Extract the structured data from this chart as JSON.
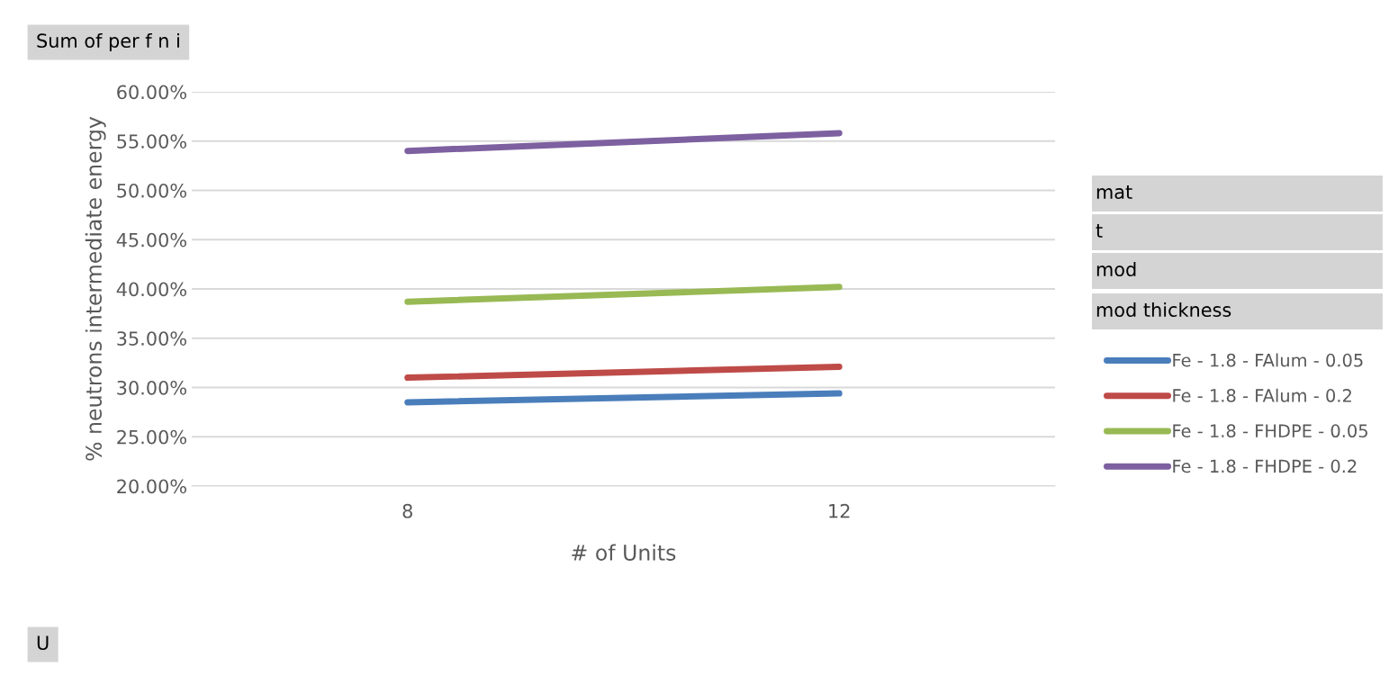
{
  "chart_data": {
    "type": "line",
    "categories": [
      "8",
      "12"
    ],
    "xlabel": "# of Units",
    "ylabel": "% neutrons intermediate energy",
    "ylim": [
      20,
      60
    ],
    "yticks": [
      {
        "value": 20,
        "label": "20.00%"
      },
      {
        "value": 25,
        "label": "25.00%"
      },
      {
        "value": 30,
        "label": "30.00%"
      },
      {
        "value": 35,
        "label": "35.00%"
      },
      {
        "value": 40,
        "label": "40.00%"
      },
      {
        "value": 45,
        "label": "45.00%"
      },
      {
        "value": 50,
        "label": "50.00%"
      },
      {
        "value": 55,
        "label": "55.00%"
      },
      {
        "value": 60,
        "label": "60.00%"
      }
    ],
    "series": [
      {
        "name": "Fe - 1.8 - FAlum - 0.05",
        "color": "#4a7ebb",
        "values": [
          28.5,
          29.4
        ]
      },
      {
        "name": "Fe - 1.8 - FAlum - 0.2",
        "color": "#be4b48",
        "values": [
          31.0,
          32.1
        ]
      },
      {
        "name": "Fe - 1.8 - FHDPE - 0.05",
        "color": "#98b954",
        "values": [
          38.7,
          40.2
        ]
      },
      {
        "name": "Fe - 1.8 - FHDPE - 0.2",
        "color": "#7d60a0",
        "values": [
          54.0,
          55.8
        ]
      }
    ],
    "annotations": [
      "Sum of per f n i",
      "mat",
      "t",
      "mod",
      "mod thickness",
      "U"
    ],
    "grid": "y",
    "legend": "right",
    "marker": "none",
    "line_style": "solid"
  }
}
